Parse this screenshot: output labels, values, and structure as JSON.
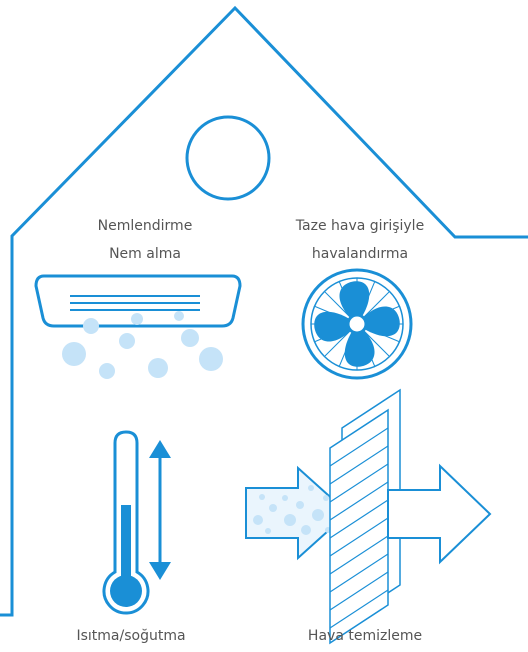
{
  "labels": {
    "humidify": "Nemlendirme",
    "dehumidify": "Nem alma",
    "fresh_air_1": "Taze hava girişiyle",
    "fresh_air_2": "havalandırma",
    "heat_cool": "Isıtma/soğutma",
    "air_purify": "Hava temizleme"
  },
  "icons": {
    "house": "house-outline-icon",
    "window": "round-window-icon",
    "ac": "air-conditioner-icon",
    "fan": "fan-icon",
    "thermo": "thermometer-icon",
    "arrows": "up-down-arrow-icon",
    "filter": "air-filter-icon"
  },
  "colors": {
    "line": "#1a8fd6",
    "fill": "#1a8fd6",
    "light": "#c5e3f8",
    "label": "#555555"
  }
}
